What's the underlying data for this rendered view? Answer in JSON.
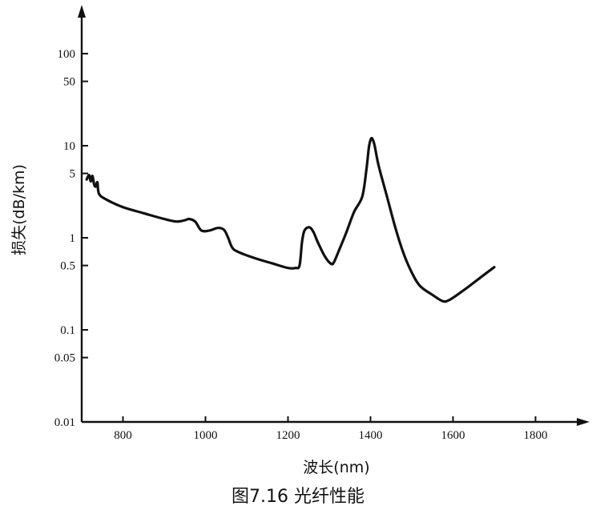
{
  "caption": "图7.16   光纤性能",
  "chart_data": {
    "type": "line",
    "title": "",
    "xlabel": "波长(nm)",
    "ylabel": "损失(dB/km)",
    "xscale": "linear",
    "yscale": "log",
    "xlim": [
      700,
      1850
    ],
    "ylim": [
      0.01,
      300
    ],
    "xticks": [
      800,
      1000,
      1200,
      1400,
      1600,
      1800
    ],
    "yticks": [
      0.01,
      0.05,
      0.1,
      0.5,
      1,
      5,
      10,
      50,
      100
    ],
    "ytick_labels": [
      "0.01",
      "0.05",
      "0.1",
      "0.5",
      "1",
      "5",
      "10",
      "50",
      "100"
    ],
    "grid": false,
    "line_color": "#111111",
    "series": [
      {
        "x": [
          712,
          718,
          722,
          726,
          730,
          734,
          738,
          742,
          760,
          800,
          850,
          900,
          930,
          950,
          960,
          975,
          990,
          1010,
          1030,
          1045,
          1055,
          1065,
          1080,
          1120,
          1160,
          1200,
          1218,
          1228,
          1234,
          1240,
          1252,
          1262,
          1272,
          1290,
          1305,
          1312,
          1322,
          1340,
          1360,
          1380,
          1390,
          1396,
          1400,
          1404,
          1410,
          1420,
          1440,
          1460,
          1480,
          1500,
          1520,
          1550,
          1575,
          1590,
          1610,
          1640,
          1670,
          1700
        ],
        "y": [
          4.3,
          4.8,
          4.1,
          4.7,
          3.8,
          3.6,
          4.0,
          3.0,
          2.6,
          2.15,
          1.85,
          1.6,
          1.5,
          1.55,
          1.6,
          1.5,
          1.2,
          1.2,
          1.28,
          1.22,
          1.0,
          0.78,
          0.7,
          0.6,
          0.53,
          0.47,
          0.47,
          0.5,
          0.9,
          1.2,
          1.3,
          1.15,
          0.9,
          0.62,
          0.52,
          0.55,
          0.7,
          1.1,
          1.9,
          2.8,
          5.5,
          9.5,
          11.5,
          12.0,
          10.0,
          6.0,
          2.8,
          1.3,
          0.68,
          0.42,
          0.3,
          0.24,
          0.205,
          0.21,
          0.24,
          0.3,
          0.38,
          0.48
        ]
      }
    ]
  }
}
